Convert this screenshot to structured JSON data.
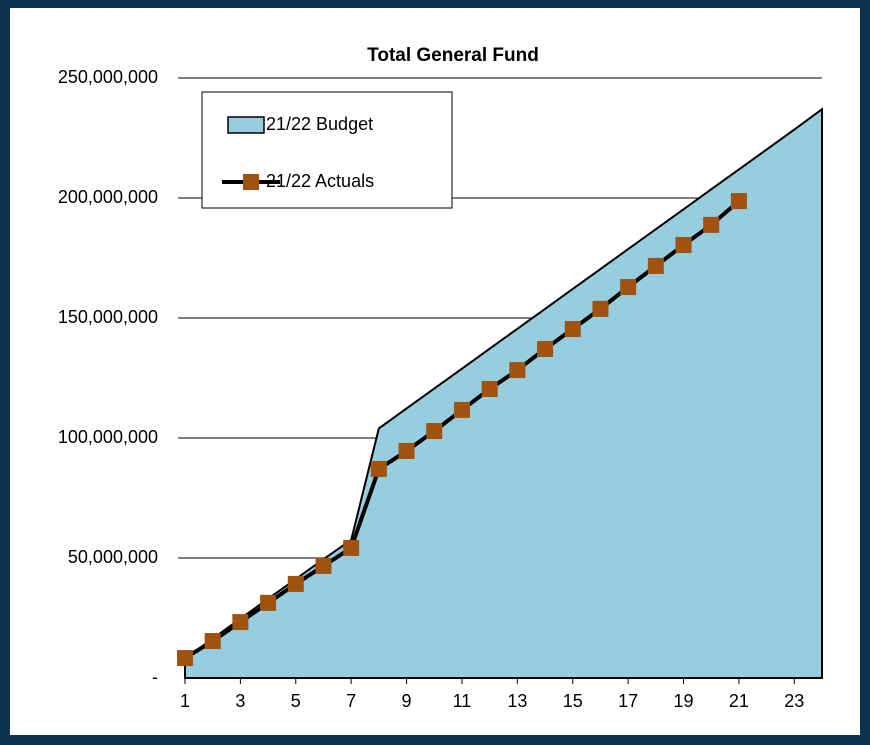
{
  "chart_data": {
    "type": "line",
    "title": "Total General Fund",
    "x": [
      1,
      2,
      3,
      4,
      5,
      6,
      7,
      8,
      9,
      10,
      11,
      12,
      13,
      14,
      15,
      16,
      17,
      18,
      19,
      20,
      21,
      22,
      23,
      24
    ],
    "xlim": [
      1,
      24
    ],
    "xticks": [
      1,
      3,
      5,
      7,
      9,
      11,
      13,
      15,
      17,
      19,
      21,
      23
    ],
    "ylim": [
      0,
      250000000
    ],
    "yticks": [
      {
        "value": 0,
        "label": "-"
      },
      {
        "value": 50000000,
        "label": "50,000,000"
      },
      {
        "value": 100000000,
        "label": "100,000,000"
      },
      {
        "value": 150000000,
        "label": "150,000,000"
      },
      {
        "value": 200000000,
        "label": "200,000,000"
      },
      {
        "value": 250000000,
        "label": "250,000,000"
      }
    ],
    "grid": true,
    "legend": "upper left",
    "series": [
      {
        "name": "21/22 Budget",
        "type": "area",
        "color": "#96cddf",
        "values": [
          8000000,
          16400000,
          24700000,
          33000000,
          41200000,
          49500000,
          57500000,
          104000000,
          112300000,
          120600000,
          128900000,
          137200000,
          145500000,
          153800000,
          162100000,
          170400000,
          178700000,
          187000000,
          195300000,
          203600000,
          211900000,
          220200000,
          228500000,
          237000000
        ]
      },
      {
        "name": "21/22 Actuals",
        "type": "line",
        "color": "#a0520f",
        "values": [
          8300000,
          15400000,
          23300000,
          31300000,
          39200000,
          46700000,
          54200000,
          87100000,
          94600000,
          102900000,
          111700000,
          120400000,
          128300000,
          137100000,
          145400000,
          153800000,
          162900000,
          171700000,
          180400000,
          188800000,
          198700000,
          null,
          null,
          null
        ]
      }
    ]
  }
}
